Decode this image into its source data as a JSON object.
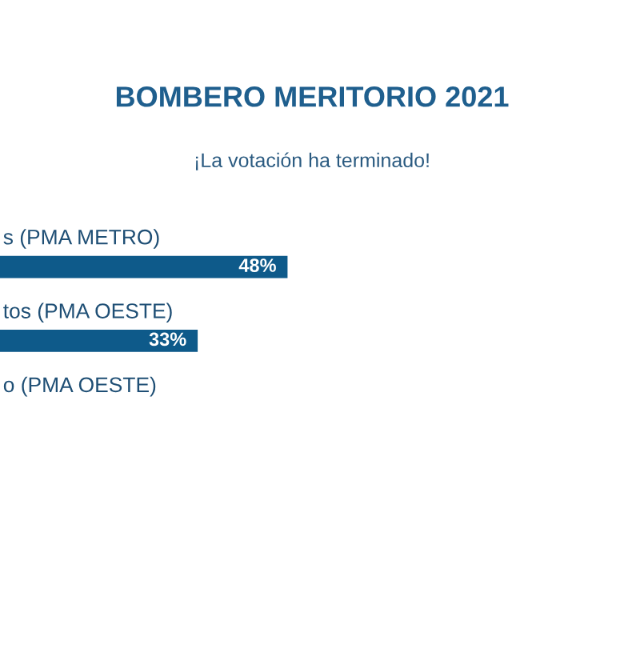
{
  "chart_data": {
    "type": "bar",
    "orientation": "horizontal",
    "title": "BOMBERO MERITORIO 2021",
    "subtitle": "¡La votación ha terminado!",
    "categories": [
      "s (PMA METRO)",
      "tos (PMA OESTE)",
      "o (PMA OESTE)"
    ],
    "values": [
      48,
      33,
      null
    ],
    "color": "#0e5a8a",
    "value_labels": [
      "48%",
      "33%",
      null
    ]
  }
}
